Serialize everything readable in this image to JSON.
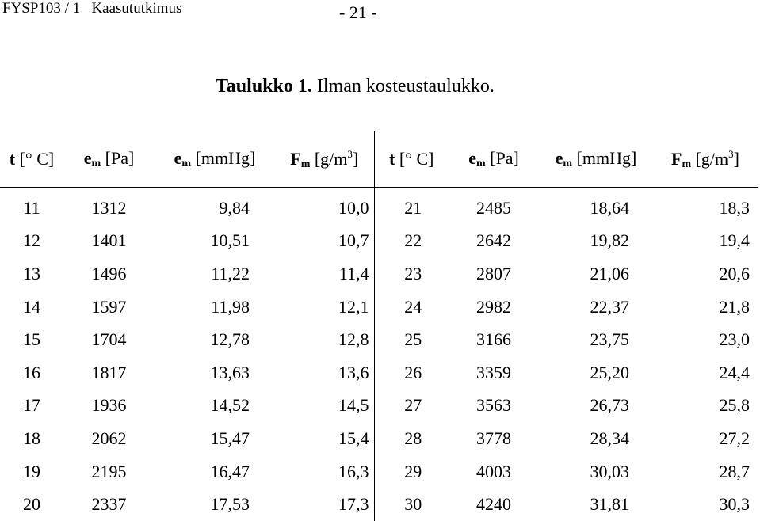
{
  "header": {
    "left": "FYSP103 / 1   Kaasututkimus",
    "page": "- 21 -"
  },
  "caption": {
    "label": "Taulukko 1.",
    "text": " Ilman kosteustaulukko."
  },
  "table": {
    "headers": {
      "t": {
        "sym": "t",
        "unit": " [° C]"
      },
      "e_pa": {
        "sym": "e",
        "sub": "m",
        "unit": " [Pa]"
      },
      "e_mmhg": {
        "sym": "e",
        "sub": "m",
        "unit": " [mmHg]"
      },
      "f": {
        "sym": "F",
        "sub": "m",
        "unit_pre": " [g/m",
        "sup": "3",
        "unit_post": "]"
      }
    },
    "rows": [
      [
        "11",
        "1312",
        "9,84",
        "10,0",
        "21",
        "2485",
        "18,64",
        "18,3"
      ],
      [
        "12",
        "1401",
        "10,51",
        "10,7",
        "22",
        "2642",
        "19,82",
        "19,4"
      ],
      [
        "13",
        "1496",
        "11,22",
        "11,4",
        "23",
        "2807",
        "21,06",
        "20,6"
      ],
      [
        "14",
        "1597",
        "11,98",
        "12,1",
        "24",
        "2982",
        "22,37",
        "21,8"
      ],
      [
        "15",
        "1704",
        "12,78",
        "12,8",
        "25",
        "3166",
        "23,75",
        "23,0"
      ],
      [
        "16",
        "1817",
        "13,63",
        "13,6",
        "26",
        "3359",
        "25,20",
        "24,4"
      ],
      [
        "17",
        "1936",
        "14,52",
        "14,5",
        "27",
        "3563",
        "26,73",
        "25,8"
      ],
      [
        "18",
        "2062",
        "15,47",
        "15,4",
        "28",
        "3778",
        "28,34",
        "27,2"
      ],
      [
        "19",
        "2195",
        "16,47",
        "16,3",
        "29",
        "4003",
        "30,03",
        "28,7"
      ],
      [
        "20",
        "2337",
        "17,53",
        "17,3",
        "30",
        "4240",
        "31,81",
        "30,3"
      ]
    ]
  }
}
